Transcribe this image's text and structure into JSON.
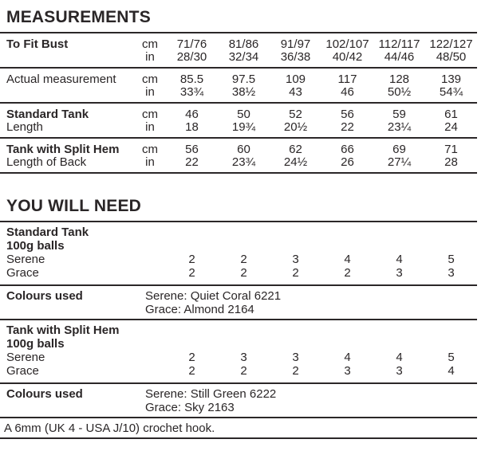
{
  "page": {
    "background": "#ffffff",
    "ink": "#2a2627",
    "rule_color": "#2b2728"
  },
  "measurements": {
    "title": "MEASUREMENTS",
    "sections": [
      {
        "label1": "To Fit Bust",
        "label2": "",
        "unit1": "cm",
        "unit2": "in",
        "row1": [
          "71/76",
          "81/86",
          "91/97",
          "102/107",
          "112/117",
          "122/127"
        ],
        "row2": [
          "28/30",
          "32/34",
          "36/38",
          "40/42",
          "44/46",
          "48/50"
        ]
      },
      {
        "label1": "Actual measurement",
        "label2": "",
        "unit1": "cm",
        "unit2": "in",
        "row1": [
          "85.5",
          "97.5",
          "109",
          "117",
          "128",
          "139"
        ],
        "row2": [
          "33¾",
          "38½",
          "43",
          "46",
          "50½",
          "54¾"
        ]
      },
      {
        "label1": "Standard Tank",
        "label2": "Length",
        "unit1": "cm",
        "unit2": "in",
        "row1": [
          "46",
          "50",
          "52",
          "56",
          "59",
          "61"
        ],
        "row2": [
          "18",
          "19¾",
          "20½",
          "22",
          "23¼",
          "24"
        ]
      },
      {
        "label1": "Tank with Split Hem",
        "label2": "Length of Back",
        "unit1": "cm",
        "unit2": "in",
        "row1": [
          "56",
          "60",
          "62",
          "66",
          "69",
          "71"
        ],
        "row2": [
          "22",
          "23¾",
          "24½",
          "26",
          "27¼",
          "28"
        ]
      }
    ]
  },
  "you_will_need": {
    "title": "YOU WILL NEED",
    "kits": [
      {
        "name": "Standard Tank",
        "subtitle": "100g balls",
        "yarns": [
          {
            "name": "Serene",
            "balls": [
              "2",
              "2",
              "3",
              "4",
              "4",
              "5"
            ]
          },
          {
            "name": "Grace",
            "balls": [
              "2",
              "2",
              "2",
              "2",
              "3",
              "3"
            ]
          }
        ],
        "colours_label": "Colours used",
        "colours": [
          "Serene: Quiet Coral 6221",
          "Grace: Almond 2164"
        ]
      },
      {
        "name": "Tank with Split Hem",
        "subtitle": "100g balls",
        "yarns": [
          {
            "name": "Serene",
            "balls": [
              "2",
              "3",
              "3",
              "4",
              "4",
              "5"
            ]
          },
          {
            "name": "Grace",
            "balls": [
              "2",
              "2",
              "2",
              "3",
              "3",
              "4"
            ]
          }
        ],
        "colours_label": "Colours used",
        "colours": [
          "Serene: Still Green 6222",
          "Grace: Sky 2163"
        ]
      }
    ],
    "hook_note": "A 6mm (UK 4 - USA J/10) crochet hook."
  }
}
